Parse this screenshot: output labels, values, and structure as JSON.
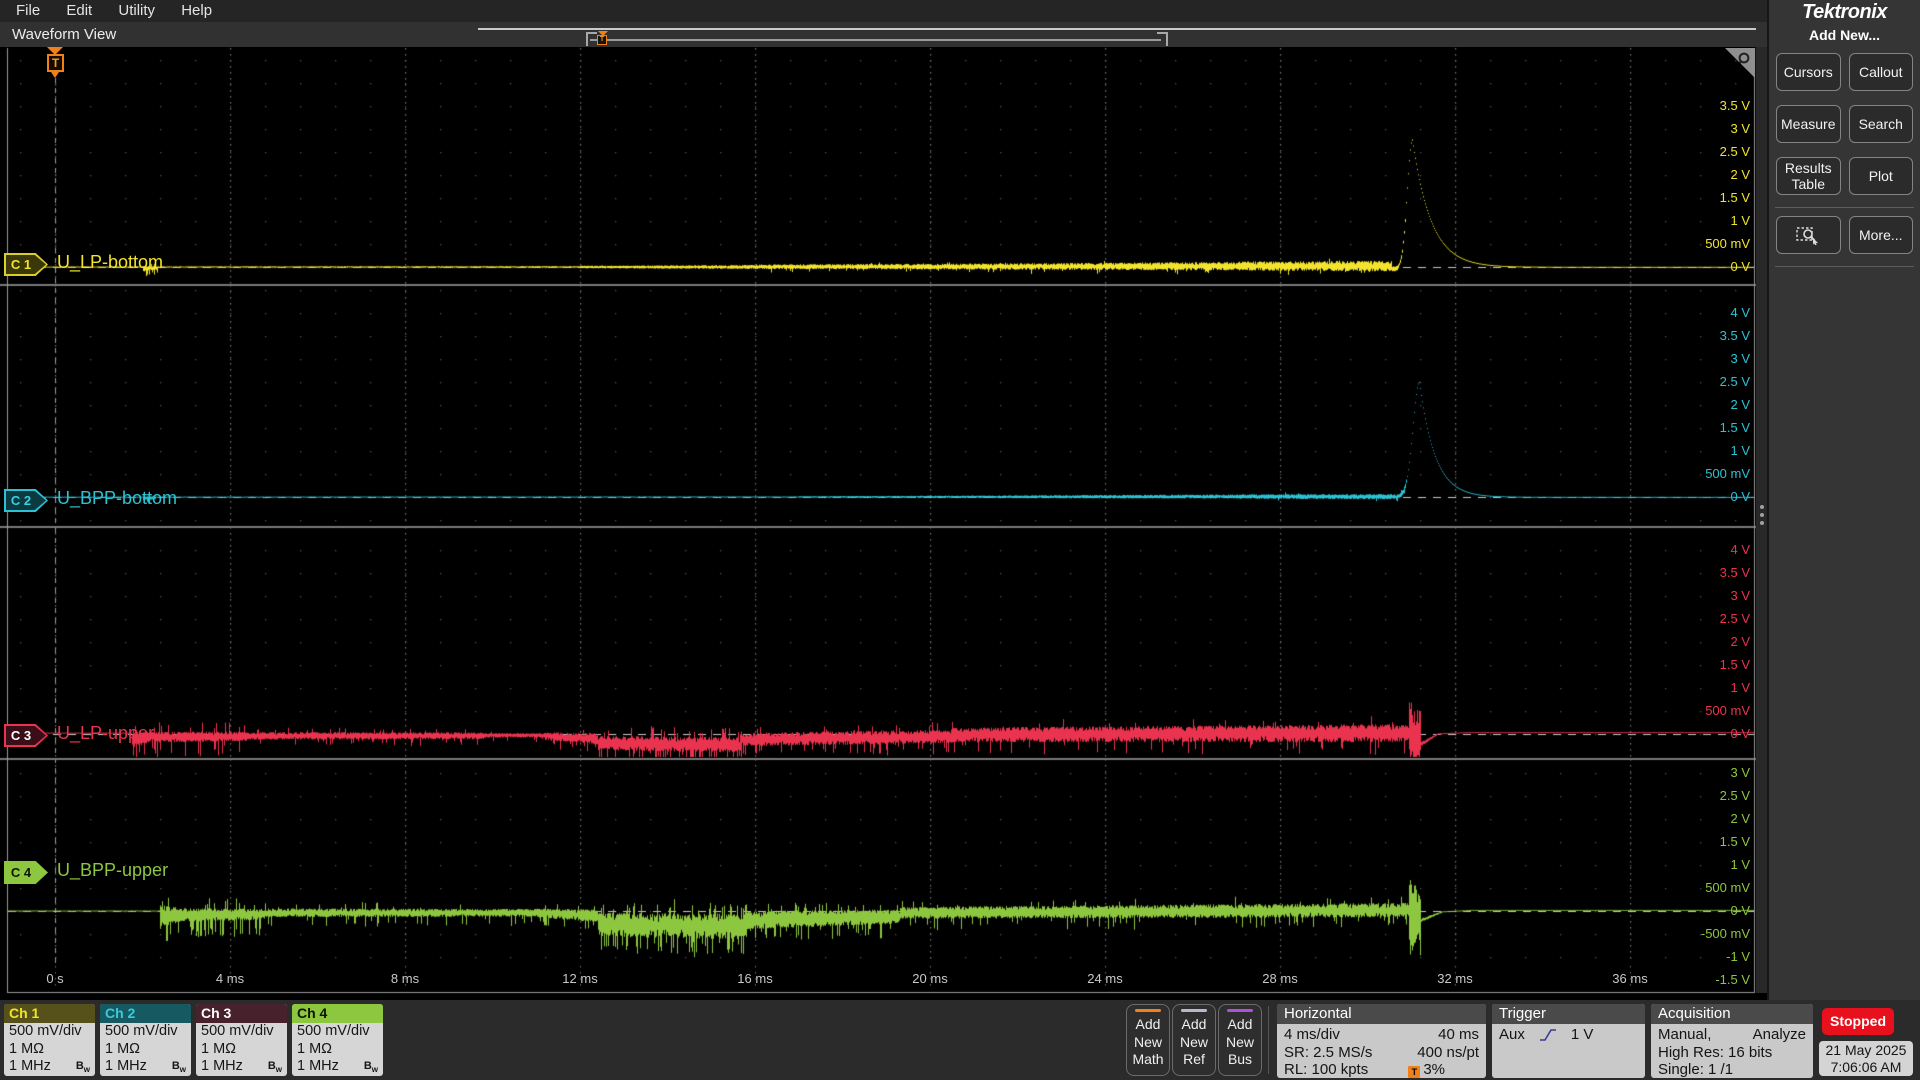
{
  "menu": {
    "items": [
      {
        "label": "File"
      },
      {
        "label": "Edit"
      },
      {
        "label": "Utility"
      },
      {
        "label": "Help"
      }
    ]
  },
  "header": {
    "title": "Waveform View"
  },
  "brand": {
    "logo": "Tektronix"
  },
  "sidebar": {
    "title": "Add New...",
    "buttons": [
      {
        "label": "Cursors"
      },
      {
        "label": "Callout"
      },
      {
        "label": "Measure"
      },
      {
        "label": "Search"
      },
      {
        "label": "Results Table"
      },
      {
        "label": "Plot"
      },
      {
        "label": "",
        "icon": "zoom-select-icon"
      },
      {
        "label": "More..."
      }
    ]
  },
  "plot": {
    "time_labels": [
      "0 s",
      "4 ms",
      "8 ms",
      "12 ms",
      "16 ms",
      "20 ms",
      "24 ms",
      "28 ms",
      "32 ms",
      "36 ms"
    ],
    "trigger_position": "T",
    "channels": [
      {
        "badge": "C 1",
        "name": "U_LP-bottom",
        "color": "#f2e42c",
        "border": "#d8cf2a",
        "fill": "#3a3808",
        "text_color": "#f2e42c",
        "scale": [
          {
            "t": "3.5 V",
            "v": 3.5
          },
          {
            "t": "3 V",
            "v": 3
          },
          {
            "t": "2.5 V",
            "v": 2.5
          },
          {
            "t": "2 V",
            "v": 2
          },
          {
            "t": "1.5 V",
            "v": 1.5
          },
          {
            "t": "1 V",
            "v": 1
          },
          {
            "t": "500 mV",
            "v": 0.5
          },
          {
            "t": "0 V",
            "v": 0
          }
        ],
        "waveform": {
          "seed": 7,
          "pulse": {
            "A": 2.76,
            "c": 31.02,
            "sigma": 0.12,
            "tau": 0.42
          },
          "segments": [
            [
              -1.2,
              2.0,
              0,
              0,
              0.012,
              0.012,
              0,
              0
            ],
            [
              2.0,
              2.35,
              -0.04,
              -0.02,
              0.06,
              0.04,
              0.3,
              -0.1
            ],
            [
              2.35,
              12.0,
              0,
              0,
              0.014,
              0.02,
              0,
              0
            ],
            [
              12.0,
              16.0,
              0,
              0,
              0.028,
              0.045,
              0,
              0
            ],
            [
              16.0,
              22.0,
              0.005,
              0.01,
              0.05,
              0.07,
              0.05,
              -0.06
            ],
            [
              22.0,
              27.0,
              0.01,
              0.02,
              0.07,
              0.095,
              0.05,
              -0.08
            ],
            [
              27.0,
              30.55,
              0.02,
              0.02,
              0.1,
              0.115,
              0.05,
              -0.08
            ],
            [
              30.55,
              30.88,
              -0.04,
              -0.09,
              0.06,
              0.04,
              0,
              0
            ],
            [
              30.88,
              33.0,
              0,
              0,
              0.015,
              0.006,
              0,
              0
            ],
            [
              33.0,
              39.0,
              0,
              0,
              0.005,
              0.005,
              0,
              0
            ]
          ]
        }
      },
      {
        "badge": "C 2",
        "name": "U_BPP-bottom",
        "color": "#2ac3d4",
        "border": "#2ac3d4",
        "fill": "#0d3a40",
        "text_color": "#35d2e2",
        "scale": [
          {
            "t": "4 V",
            "v": 4
          },
          {
            "t": "3.5 V",
            "v": 3.5
          },
          {
            "t": "3 V",
            "v": 3
          },
          {
            "t": "2.5 V",
            "v": 2.5
          },
          {
            "t": "2 V",
            "v": 2
          },
          {
            "t": "1.5 V",
            "v": 1.5
          },
          {
            "t": "1 V",
            "v": 1
          },
          {
            "t": "500 mV",
            "v": 0.5
          },
          {
            "t": "0 V",
            "v": 0
          }
        ],
        "waveform": {
          "seed": 13,
          "pulse": {
            "A": 2.5,
            "c": 31.18,
            "sigma": 0.15,
            "tau": 0.35
          },
          "segments": [
            [
              -1.2,
              2.0,
              0,
              0,
              0.008,
              0.008,
              0,
              0
            ],
            [
              2.0,
              2.3,
              -0.025,
              -0.015,
              0.045,
              0.035,
              0.25,
              -0.08
            ],
            [
              2.3,
              17.0,
              0,
              0,
              0.009,
              0.013,
              0,
              0
            ],
            [
              17.0,
              22.0,
              0,
              0.005,
              0.018,
              0.03,
              0,
              0
            ],
            [
              22.0,
              27.0,
              0.005,
              0.01,
              0.032,
              0.045,
              0,
              0
            ],
            [
              27.0,
              30.9,
              0.01,
              0.005,
              0.05,
              0.058,
              0.04,
              -0.05
            ],
            [
              30.9,
              32.5,
              0,
              0,
              0.008,
              0.005,
              0,
              0
            ],
            [
              32.5,
              39.0,
              0,
              0,
              0.004,
              0.004,
              0,
              0
            ]
          ]
        }
      },
      {
        "badge": "C 3",
        "name": "U_LP-upper",
        "color": "#e9334f",
        "border": "#e9334f",
        "fill": "#3a0d18",
        "text_color": "#ffffff",
        "scale": [
          {
            "t": "4 V",
            "v": 4
          },
          {
            "t": "3.5 V",
            "v": 3.5
          },
          {
            "t": "3 V",
            "v": 3
          },
          {
            "t": "2.5 V",
            "v": 2.5
          },
          {
            "t": "2 V",
            "v": 2
          },
          {
            "t": "1.5 V",
            "v": 1.5
          },
          {
            "t": "1 V",
            "v": 1
          },
          {
            "t": "500 mV",
            "v": 0.5
          },
          {
            "t": "0 V",
            "v": 0
          }
        ],
        "waveform": {
          "seed": 21,
          "pulse": null,
          "segments": [
            [
              -1.2,
              1.75,
              0.02,
              0.02,
              0.012,
              0.012,
              0,
              0
            ],
            [
              1.75,
              2.1,
              -0.1,
              -0.07,
              0.2,
              0.14,
              0.3,
              -0.25
            ],
            [
              2.1,
              4.4,
              -0.07,
              -0.05,
              0.12,
              0.1,
              0.22,
              -0.28
            ],
            [
              4.4,
              9.8,
              -0.04,
              -0.04,
              0.085,
              0.075,
              0.1,
              -0.12
            ],
            [
              9.8,
              11.2,
              -0.03,
              -0.03,
              0.05,
              0.05,
              0.05,
              -0.08
            ],
            [
              11.2,
              12.4,
              -0.05,
              -0.1,
              0.09,
              0.13,
              0.1,
              -0.15
            ],
            [
              12.4,
              15.7,
              -0.2,
              -0.24,
              0.16,
              0.17,
              0.25,
              -0.28
            ],
            [
              15.7,
              20.5,
              -0.12,
              -0.05,
              0.15,
              0.15,
              0.15,
              -0.2
            ],
            [
              20.5,
              30.93,
              -0.02,
              0.02,
              0.16,
              0.2,
              0.08,
              -0.22
            ],
            [
              30.93,
              31.22,
              0,
              0,
              0.6,
              0.5,
              0.3,
              -0.25
            ],
            [
              31.22,
              31.6,
              -0.22,
              0,
              0.05,
              0.02,
              0,
              0
            ],
            [
              31.6,
              32.3,
              0,
              0.035,
              0.015,
              0.007,
              0,
              0
            ],
            [
              32.3,
              39.0,
              0.035,
              0.035,
              0.005,
              0.005,
              0,
              0
            ]
          ]
        }
      },
      {
        "badge": "C 4",
        "name": "U_BPP-upper",
        "color": "#8dc63f",
        "border": "#8dc63f",
        "fill": "#8dc63f",
        "text_color": "#0c1800",
        "scale": [
          {
            "t": "3 V",
            "v": 3
          },
          {
            "t": "2.5 V",
            "v": 2.5
          },
          {
            "t": "2 V",
            "v": 2
          },
          {
            "t": "1.5 V",
            "v": 1.5
          },
          {
            "t": "1 V",
            "v": 1
          },
          {
            "t": "500 mV",
            "v": 0.5
          },
          {
            "t": "0 V",
            "v": 0
          },
          {
            "t": "-500 mV",
            "v": -0.5
          },
          {
            "t": "-1 V",
            "v": -1
          },
          {
            "t": "-1.5 V",
            "v": -1.5
          }
        ],
        "waveform": {
          "seed": 33,
          "pulse": null,
          "segments": [
            [
              -1.2,
              2.4,
              0,
              0,
              0.012,
              0.012,
              0,
              0
            ],
            [
              2.4,
              2.8,
              -0.12,
              -0.09,
              0.25,
              0.18,
              0.3,
              -0.25
            ],
            [
              2.8,
              4.8,
              -0.09,
              -0.07,
              0.15,
              0.12,
              0.25,
              -0.3
            ],
            [
              4.8,
              11.0,
              -0.04,
              -0.04,
              0.095,
              0.085,
              0.12,
              -0.18
            ],
            [
              11.0,
              12.4,
              -0.05,
              -0.1,
              0.1,
              0.14,
              0.1,
              -0.15
            ],
            [
              12.4,
              15.8,
              -0.3,
              -0.34,
              0.26,
              0.28,
              0.3,
              -0.35
            ],
            [
              15.8,
              19.3,
              -0.2,
              -0.12,
              0.2,
              0.16,
              0.2,
              -0.25
            ],
            [
              19.3,
              30.93,
              -0.04,
              0.02,
              0.13,
              0.16,
              0.1,
              -0.2
            ],
            [
              30.93,
              31.22,
              -0.1,
              -0.1,
              0.75,
              0.6,
              0.35,
              -0.3
            ],
            [
              31.22,
              31.7,
              -0.2,
              -0.02,
              0.04,
              0.02,
              0,
              0
            ],
            [
              31.7,
              32.4,
              -0.02,
              0.02,
              0.012,
              0.007,
              0,
              0
            ],
            [
              32.4,
              39.0,
              0.02,
              0.02,
              0.005,
              0.005,
              0,
              0
            ]
          ]
        }
      }
    ]
  },
  "footer": {
    "channels": [
      {
        "label": "Ch 1",
        "vdiv": "500 mV/div",
        "imp": "1 MΩ",
        "bw": "1 MHz",
        "bwB": "B",
        "bwSub": "w",
        "hbg": "#56511a",
        "hfg": "#f0e428"
      },
      {
        "label": "Ch 2",
        "vdiv": "500 mV/div",
        "imp": "1 MΩ",
        "bw": "1 MHz",
        "bwB": "B",
        "bwSub": "w",
        "hbg": "#175960",
        "hfg": "#35ccdc"
      },
      {
        "label": "Ch 3",
        "vdiv": "500 mV/div",
        "imp": "1 MΩ",
        "bw": "1 MHz",
        "bwB": "B",
        "bwSub": "w",
        "hbg": "#47222c",
        "hfg": "#ffffff"
      },
      {
        "label": "Ch 4",
        "vdiv": "500 mV/div",
        "imp": "1 MΩ",
        "bw": "1 MHz",
        "bwB": "B",
        "bwSub": "w",
        "hbg": "#8dc63f",
        "hfg": "#0c1400"
      }
    ],
    "add": [
      {
        "label": "Add New Math",
        "accent": "#f08018"
      },
      {
        "label": "Add New Ref",
        "accent": "#b8b8cc"
      },
      {
        "label": "Add New Bus",
        "accent": "#b050e0"
      }
    ],
    "horizontal": {
      "title": "Horizontal",
      "r1c1": "4 ms/div",
      "r1c2": "40 ms",
      "r2c1": "SR: 2.5 MS/s",
      "r2c2": "400 ns/pt",
      "r3c1": "RL: 100 kpts",
      "r3c2": "3%",
      "trig_icon": "T"
    },
    "trigger": {
      "title": "Trigger",
      "source": "Aux",
      "level": "1 V"
    },
    "acquisition": {
      "title": "Acquisition",
      "l1a": "Manual,",
      "l1b": "Analyze",
      "l2": "High Res: 16 bits",
      "l3": "Single: 1 /1"
    },
    "status": {
      "state": "Stopped",
      "date": "21 May 2025",
      "time": "7:06:06 AM"
    }
  },
  "colors": {
    "trigger_orange": "#f08018",
    "run_stop_red": "#e8101c",
    "grid_dot": "#4f4f4f",
    "divider": "#7a7a7a"
  }
}
